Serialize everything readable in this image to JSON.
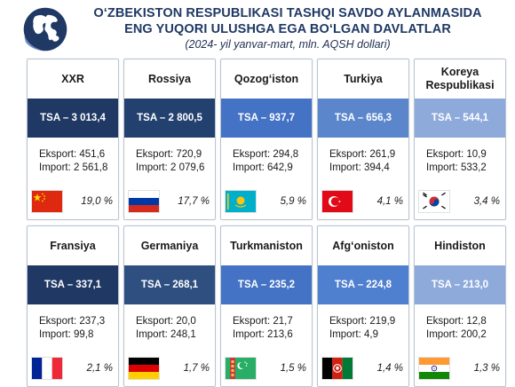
{
  "header": {
    "title_line1": "O‘ZBEKISTON RESPUBLIKASI TASHQI SAVDO AYLANMASIDA",
    "title_line2": "ENG YUQORI ULUSHGA EGA BO‘LGAN DAVLATLAR",
    "subtitle": "(2024- yil yanvar-mart, mln. AQSH dollari)"
  },
  "cards": [
    {
      "name": "XXR",
      "tsa": "TSA – 3 013,4",
      "export": "Eksport: 451,6",
      "import": "Import: 2 561,8",
      "share": "19,0 %",
      "flag": "china-flag-icon",
      "band_color": "#1f3864"
    },
    {
      "name": "Rossiya",
      "tsa": "TSA – 2 800,5",
      "export": "Eksport: 720,9",
      "import": "Import: 2 079,6",
      "share": "17,7 %",
      "flag": "russia-flag-icon",
      "band_color": "#23416f"
    },
    {
      "name": "Qozog‘iston",
      "tsa": "TSA – 937,7",
      "export": "Eksport: 294,8",
      "import": "Import: 642,9",
      "share": "5,9 %",
      "flag": "kazakhstan-flag-icon",
      "band_color": "#4472c4"
    },
    {
      "name": "Turkiya",
      "tsa": "TSA – 656,3",
      "export": "Eksport: 261,9",
      "import": "Import: 394,4",
      "share": "4,1 %",
      "flag": "turkey-flag-icon",
      "band_color": "#5b86cc"
    },
    {
      "name": "Koreya Respublikasi",
      "tsa": "TSA – 544,1",
      "export": "Eksport: 10,9",
      "import": "Import: 533,2",
      "share": "3,4 %",
      "flag": "south-korea-flag-icon",
      "band_color": "#8eaadb"
    },
    {
      "name": "Fransiya",
      "tsa": "TSA – 337,1",
      "export": "Eksport: 237,3",
      "import": "Import: 99,8",
      "share": "2,1 %",
      "flag": "france-flag-icon",
      "band_color": "#1f3864"
    },
    {
      "name": "Germaniya",
      "tsa": "TSA – 268,1",
      "export": "Eksport: 20,0",
      "import": "Import: 248,1",
      "share": "1,7 %",
      "flag": "germany-flag-icon",
      "band_color": "#2f4f80"
    },
    {
      "name": "Turkmaniston",
      "tsa": "TSA – 235,2",
      "export": "Eksport: 21,7",
      "import": "Import: 213,6",
      "share": "1,5 %",
      "flag": "turkmenistan-flag-icon",
      "band_color": "#4472c4"
    },
    {
      "name": "Afg‘oniston",
      "tsa": "TSA – 224,8",
      "export": "Eksport: 219,9",
      "import": "Import: 4,9",
      "share": "1,4 %",
      "flag": "afghanistan-flag-icon",
      "band_color": "#4f7fcf"
    },
    {
      "name": "Hindiston",
      "tsa": "TSA – 213,0",
      "export": "Eksport: 12,8",
      "import": "Import: 200,2",
      "share": "1,3 %",
      "flag": "india-flag-icon",
      "band_color": "#8eaadb"
    }
  ]
}
